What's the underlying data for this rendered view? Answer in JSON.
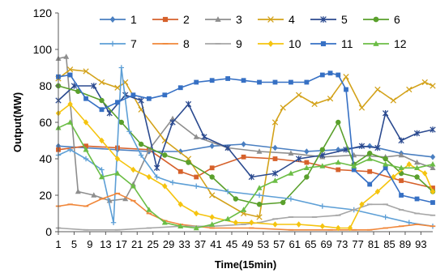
{
  "chart_data": {
    "type": "line",
    "xlabel": "Time(15min)",
    "ylabel": "Output(MW)",
    "xlim": [
      1,
      96
    ],
    "ylim": [
      0,
      120
    ],
    "yticks": [
      0,
      20,
      40,
      60,
      80,
      100,
      120
    ],
    "xticks": [
      1,
      5,
      9,
      13,
      17,
      21,
      25,
      29,
      33,
      37,
      41,
      45,
      49,
      53,
      57,
      61,
      65,
      69,
      73,
      77,
      81,
      85,
      89,
      93
    ],
    "grid": false,
    "legend_position": "top",
    "series": [
      {
        "name": "1",
        "color": "#4a7fc1",
        "marker": "diamond",
        "x": [
          1,
          8,
          16,
          24,
          32,
          40,
          48,
          56,
          64,
          72,
          80,
          88,
          96
        ],
        "y": [
          47,
          46,
          45,
          44,
          44,
          47,
          48,
          46,
          44,
          45,
          47,
          43,
          41
        ]
      },
      {
        "name": "2",
        "color": "#d6612b",
        "marker": "square",
        "x": [
          1,
          8,
          16,
          24,
          32,
          36,
          40,
          48,
          56,
          64,
          72,
          80,
          88,
          96
        ],
        "y": [
          45,
          47,
          46,
          45,
          33,
          30,
          35,
          41,
          40,
          38,
          34,
          33,
          28,
          24
        ]
      },
      {
        "name": "3",
        "color": "#8e8e8e",
        "marker": "triangle",
        "x": [
          1,
          3,
          6,
          10,
          14,
          18,
          20,
          24,
          30,
          36,
          44,
          52,
          60,
          68,
          76,
          84,
          88,
          92,
          96
        ],
        "y": [
          95,
          96,
          22,
          20,
          17,
          18,
          26,
          45,
          62,
          52,
          46,
          44,
          43,
          41,
          42,
          41,
          42,
          38,
          35
        ]
      },
      {
        "name": "4",
        "color": "#d3a21a",
        "marker": "x",
        "x": [
          1,
          4,
          8,
          12,
          16,
          18,
          22,
          28,
          34,
          40,
          48,
          52,
          56,
          58,
          62,
          66,
          70,
          74,
          78,
          82,
          86,
          90,
          94,
          96
        ],
        "y": [
          84,
          89,
          88,
          82,
          79,
          82,
          67,
          50,
          40,
          20,
          10,
          8,
          60,
          68,
          75,
          70,
          73,
          85,
          68,
          78,
          72,
          78,
          82,
          80
        ]
      },
      {
        "name": "5",
        "color": "#2b4a8f",
        "marker": "star",
        "x": [
          1,
          5,
          10,
          14,
          18,
          22,
          26,
          30,
          34,
          38,
          44,
          50,
          56,
          62,
          68,
          74,
          78,
          82,
          84,
          88,
          92,
          96
        ],
        "y": [
          72,
          80,
          80,
          65,
          75,
          72,
          35,
          60,
          70,
          52,
          46,
          30,
          32,
          40,
          42,
          45,
          47,
          46,
          65,
          50,
          54,
          56
        ]
      },
      {
        "name": "6",
        "color": "#5aa02c",
        "marker": "circle",
        "x": [
          1,
          6,
          12,
          17,
          22,
          28,
          34,
          40,
          46,
          52,
          58,
          64,
          68,
          72,
          76,
          80,
          84,
          88,
          92,
          96
        ],
        "y": [
          80,
          77,
          72,
          60,
          48,
          42,
          38,
          30,
          18,
          15,
          16,
          30,
          45,
          60,
          37,
          43,
          40,
          32,
          30,
          22
        ]
      },
      {
        "name": "7",
        "color": "#5d9fd6",
        "marker": "plus",
        "x": [
          1,
          4,
          8,
          12,
          15,
          17,
          19,
          22,
          26,
          30,
          36,
          44,
          52,
          60,
          68,
          76,
          84,
          90,
          96
        ],
        "y": [
          42,
          45,
          40,
          34,
          5,
          90,
          55,
          42,
          30,
          27,
          25,
          22,
          20,
          18,
          14,
          12,
          8,
          5,
          3
        ]
      },
      {
        "name": "8",
        "color": "#f0873a",
        "marker": "dash",
        "x": [
          1,
          4,
          8,
          12,
          16,
          20,
          24,
          28,
          32,
          36,
          40,
          50,
          60,
          70,
          76,
          80,
          84,
          88,
          92,
          96
        ],
        "y": [
          14,
          15,
          14,
          18,
          21,
          17,
          10,
          6,
          4,
          3,
          2,
          2,
          1,
          1,
          1,
          1,
          2,
          3,
          4,
          3
        ]
      },
      {
        "name": "9",
        "color": "#a6a6a6",
        "marker": "dash",
        "x": [
          1,
          8,
          16,
          24,
          32,
          40,
          48,
          52,
          56,
          60,
          66,
          72,
          76,
          80,
          84,
          88,
          92,
          96
        ],
        "y": [
          2,
          1,
          1,
          2,
          3,
          3,
          4,
          5,
          7,
          8,
          8,
          9,
          12,
          15,
          15,
          12,
          10,
          9
        ]
      },
      {
        "name": "10",
        "color": "#f5c40f",
        "marker": "diamond",
        "x": [
          1,
          4,
          8,
          12,
          16,
          20,
          24,
          28,
          32,
          36,
          40,
          46,
          50,
          56,
          62,
          68,
          72,
          75,
          78,
          82,
          86,
          90,
          94,
          96
        ],
        "y": [
          65,
          70,
          60,
          50,
          40,
          34,
          30,
          25,
          15,
          10,
          8,
          5,
          5,
          4,
          4,
          3,
          2,
          2,
          15,
          22,
          30,
          37,
          32,
          22
        ]
      },
      {
        "name": "11",
        "color": "#3670c4",
        "marker": "square",
        "x": [
          1,
          4,
          8,
          12,
          16,
          20,
          24,
          28,
          32,
          36,
          40,
          44,
          48,
          52,
          56,
          60,
          64,
          68,
          70,
          72,
          74,
          76,
          80,
          84,
          88,
          92,
          96
        ],
        "y": [
          85,
          86,
          73,
          67,
          71,
          75,
          73,
          75,
          79,
          82,
          83,
          84,
          83,
          82,
          82,
          82,
          82,
          86,
          87,
          86,
          78,
          34,
          26,
          35,
          20,
          18,
          16
        ]
      },
      {
        "name": "12",
        "color": "#6bbd45",
        "marker": "triangle",
        "x": [
          1,
          4,
          8,
          12,
          16,
          20,
          24,
          28,
          32,
          36,
          40,
          44,
          48,
          52,
          56,
          60,
          64,
          68,
          72,
          76,
          80,
          84,
          88,
          92,
          96
        ],
        "y": [
          57,
          60,
          45,
          30,
          32,
          25,
          12,
          5,
          3,
          2,
          4,
          7,
          12,
          24,
          28,
          32,
          35,
          36,
          38,
          36,
          40,
          37,
          35,
          35,
          37
        ]
      }
    ]
  }
}
